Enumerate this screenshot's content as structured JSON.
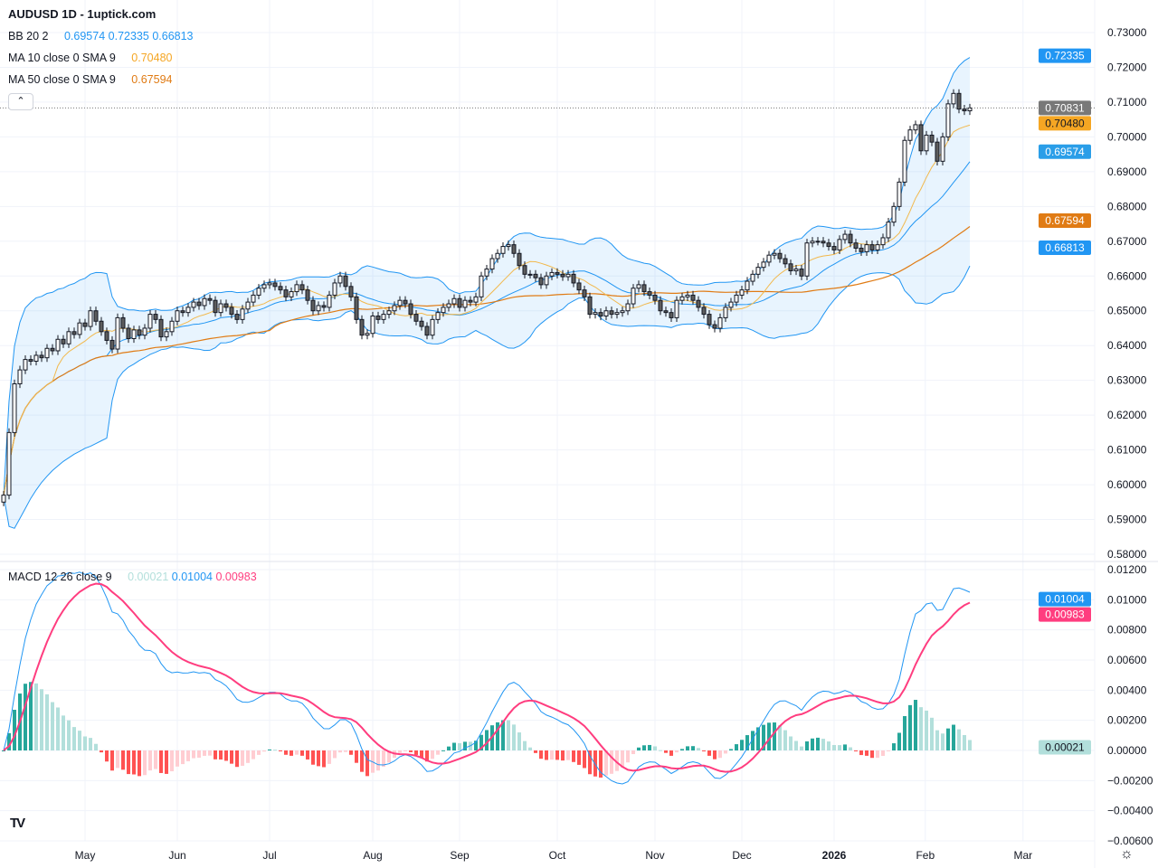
{
  "header": {
    "title": "AUDUSD 1D - 1uptick.com"
  },
  "legend": {
    "bb": {
      "label": "BB 20 2",
      "basis": "0.69574",
      "upper": "0.72335",
      "lower": "0.66813"
    },
    "ma10": {
      "label": "MA 10 close 0 SMA 9",
      "value": "0.70480"
    },
    "ma50": {
      "label": "MA 50 close 0 SMA 9",
      "value": "0.67594"
    },
    "macd": {
      "label": "MACD 12 26 close 9",
      "hist": "0.00021",
      "macd": "0.01004",
      "signal": "0.00983"
    }
  },
  "colors": {
    "bb": "#2196f3",
    "bb_fill": "rgba(33,150,243,0.10)",
    "ma10": "#f2b84b",
    "ma50": "#e07b14",
    "macd": "#2196f3",
    "signal": "#ff3d7f",
    "hist_up_strong": "#26a69a",
    "hist_up_weak": "#b2dfdb",
    "hist_down_strong": "#ff5252",
    "hist_down_weak": "#ffcdd2",
    "candle_up": "#ffffff",
    "candle_down": "#5d5d5d",
    "last_price": "#787878"
  },
  "icons": {
    "collapse": "chevron-up-icon",
    "logo": "tradingview-logo",
    "settings": "gear-icon"
  },
  "chart_data": {
    "type": "candlestick",
    "symbol": "AUDUSD",
    "interval": "1D",
    "price_ylim": [
      0.58,
      0.73
    ],
    "price_ticks": [
      "0.73000",
      "0.72000",
      "0.71000",
      "0.70000",
      "0.69000",
      "0.68000",
      "0.67000",
      "0.66000",
      "0.65000",
      "0.64000",
      "0.63000",
      "0.62000",
      "0.61000",
      "0.60000",
      "0.59000",
      "0.58000"
    ],
    "macd_ylim": [
      -0.006,
      0.012
    ],
    "macd_ticks": [
      "0.01200",
      "0.01000",
      "0.00800",
      "0.00600",
      "0.00400",
      "0.00200",
      "0.00000",
      "−0.00200",
      "−0.00400",
      "−0.00600"
    ],
    "x_ticks": [
      {
        "label": "May",
        "bar": 15
      },
      {
        "label": "Jun",
        "bar": 32
      },
      {
        "label": "Jul",
        "bar": 49
      },
      {
        "label": "Aug",
        "bar": 68
      },
      {
        "label": "Sep",
        "bar": 84
      },
      {
        "label": "Oct",
        "bar": 102
      },
      {
        "label": "Nov",
        "bar": 120
      },
      {
        "label": "Dec",
        "bar": 136
      },
      {
        "label": "2026",
        "bar": 153,
        "bold": true
      },
      {
        "label": "Feb",
        "bar": 169.8
      },
      {
        "label": "Mar",
        "bar": 187.8
      }
    ],
    "grid": true,
    "closes": [
      0.597,
      0.615,
      0.629,
      0.633,
      0.636,
      0.6355,
      0.6372,
      0.6365,
      0.6392,
      0.6385,
      0.6418,
      0.6405,
      0.644,
      0.6432,
      0.6465,
      0.6455,
      0.65,
      0.647,
      0.644,
      0.6415,
      0.639,
      0.648,
      0.645,
      0.642,
      0.6445,
      0.643,
      0.645,
      0.649,
      0.6475,
      0.6425,
      0.644,
      0.647,
      0.65,
      0.6495,
      0.651,
      0.6525,
      0.6515,
      0.6535,
      0.653,
      0.6495,
      0.652,
      0.651,
      0.649,
      0.6475,
      0.6505,
      0.6525,
      0.6545,
      0.6565,
      0.6575,
      0.658,
      0.657,
      0.656,
      0.654,
      0.6555,
      0.6575,
      0.656,
      0.653,
      0.65,
      0.6515,
      0.651,
      0.6545,
      0.658,
      0.66,
      0.657,
      0.654,
      0.6475,
      0.643,
      0.6435,
      0.6485,
      0.6475,
      0.649,
      0.65,
      0.6515,
      0.653,
      0.652,
      0.649,
      0.647,
      0.6455,
      0.643,
      0.6475,
      0.6495,
      0.651,
      0.652,
      0.6535,
      0.651,
      0.653,
      0.6525,
      0.654,
      0.66,
      0.662,
      0.665,
      0.6665,
      0.6685,
      0.669,
      0.6665,
      0.663,
      0.6605,
      0.6605,
      0.6595,
      0.6575,
      0.66,
      0.661,
      0.6605,
      0.6598,
      0.6605,
      0.658,
      0.656,
      0.654,
      0.649,
      0.6495,
      0.6485,
      0.65,
      0.649,
      0.6495,
      0.65,
      0.652,
      0.6565,
      0.6575,
      0.6555,
      0.6545,
      0.653,
      0.65,
      0.6495,
      0.648,
      0.653,
      0.654,
      0.6545,
      0.653,
      0.651,
      0.649,
      0.646,
      0.645,
      0.648,
      0.651,
      0.6525,
      0.6545,
      0.656,
      0.6585,
      0.6605,
      0.6625,
      0.664,
      0.666,
      0.6665,
      0.665,
      0.6635,
      0.6615,
      0.662,
      0.66,
      0.6695,
      0.67,
      0.67,
      0.6695,
      0.6685,
      0.6675,
      0.6705,
      0.672,
      0.6695,
      0.668,
      0.667,
      0.669,
      0.6675,
      0.669,
      0.671,
      0.6755,
      0.68,
      0.687,
      0.699,
      0.702,
      0.7035,
      0.696,
      0.7005,
      0.6985,
      0.693,
      0.7,
      0.7095,
      0.7125,
      0.708,
      0.7075,
      0.70831
    ],
    "last_values": {
      "last_price": "0.70831",
      "ma10": "0.70480",
      "bb_basis": "0.69574",
      "bb_upper": "0.72335",
      "bb_lower": "0.66813",
      "ma50": "0.67594",
      "macd": "0.01004",
      "signal": "0.00983",
      "hist": "0.00021"
    }
  }
}
